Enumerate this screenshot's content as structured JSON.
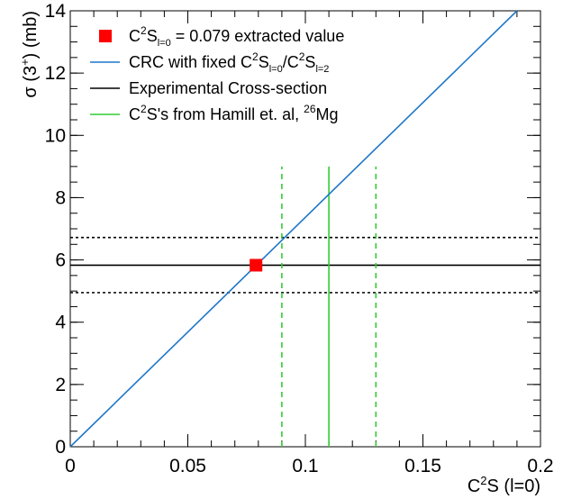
{
  "chart_data": {
    "type": "line",
    "xlabel_main": "C",
    "xlabel_sup": "2",
    "xlabel_rest": "S (l=0)",
    "ylabel_main": "σ (3",
    "ylabel_sup": "+",
    "ylabel_rest": ") (mb)",
    "xlim": [
      0,
      0.2
    ],
    "ylim": [
      0,
      14
    ],
    "x_ticks": [
      {
        "value": 0,
        "label": "0"
      },
      {
        "value": 0.05,
        "label": "0.05"
      },
      {
        "value": 0.1,
        "label": "0.1"
      },
      {
        "value": 0.15,
        "label": "0.15"
      },
      {
        "value": 0.2,
        "label": "0.2"
      }
    ],
    "y_ticks": [
      {
        "value": 0,
        "label": "0"
      },
      {
        "value": 2,
        "label": "2"
      },
      {
        "value": 4,
        "label": "4"
      },
      {
        "value": 6,
        "label": "6"
      },
      {
        "value": 8,
        "label": "8"
      },
      {
        "value": 10,
        "label": "10"
      },
      {
        "value": 12,
        "label": "12"
      },
      {
        "value": 14,
        "label": "14"
      }
    ],
    "grid": false,
    "legend_position": "top-left",
    "extracted_point": {
      "x": 0.079,
      "y": 5.83,
      "color": "#ff0000"
    },
    "crc_line": {
      "x": [
        0,
        0.19
      ],
      "y": [
        0,
        14.0
      ],
      "color": "#1f77c8"
    },
    "experimental": {
      "value": 5.83,
      "lower": 4.95,
      "upper": 6.72,
      "color": "#000000"
    },
    "hamill": {
      "value": 0.11,
      "lower": 0.09,
      "upper": 0.13,
      "y_top": 9.0,
      "color": "#33cc33"
    },
    "legend": [
      {
        "kind": "marker",
        "parts": [
          [
            "t",
            "C"
          ],
          [
            "sup",
            "2"
          ],
          [
            "t",
            "S"
          ],
          [
            "sub",
            "l=0"
          ],
          [
            "t",
            " = 0.079 extracted value"
          ]
        ]
      },
      {
        "kind": "blue",
        "parts": [
          [
            "t",
            "CRC with fixed C"
          ],
          [
            "sup",
            "2"
          ],
          [
            "t",
            "S"
          ],
          [
            "sub",
            "l=0"
          ],
          [
            "t",
            "/C"
          ],
          [
            "sup",
            "2"
          ],
          [
            "t",
            "S"
          ],
          [
            "sub",
            "l=2"
          ]
        ]
      },
      {
        "kind": "black",
        "parts": [
          [
            "t",
            "Experimental Cross-section"
          ]
        ]
      },
      {
        "kind": "green",
        "parts": [
          [
            "t",
            "C"
          ],
          [
            "sup",
            "2"
          ],
          [
            "t",
            "S's from Hamill et. al, "
          ],
          [
            "sup",
            "26"
          ],
          [
            "t",
            "Mg"
          ]
        ]
      }
    ]
  }
}
